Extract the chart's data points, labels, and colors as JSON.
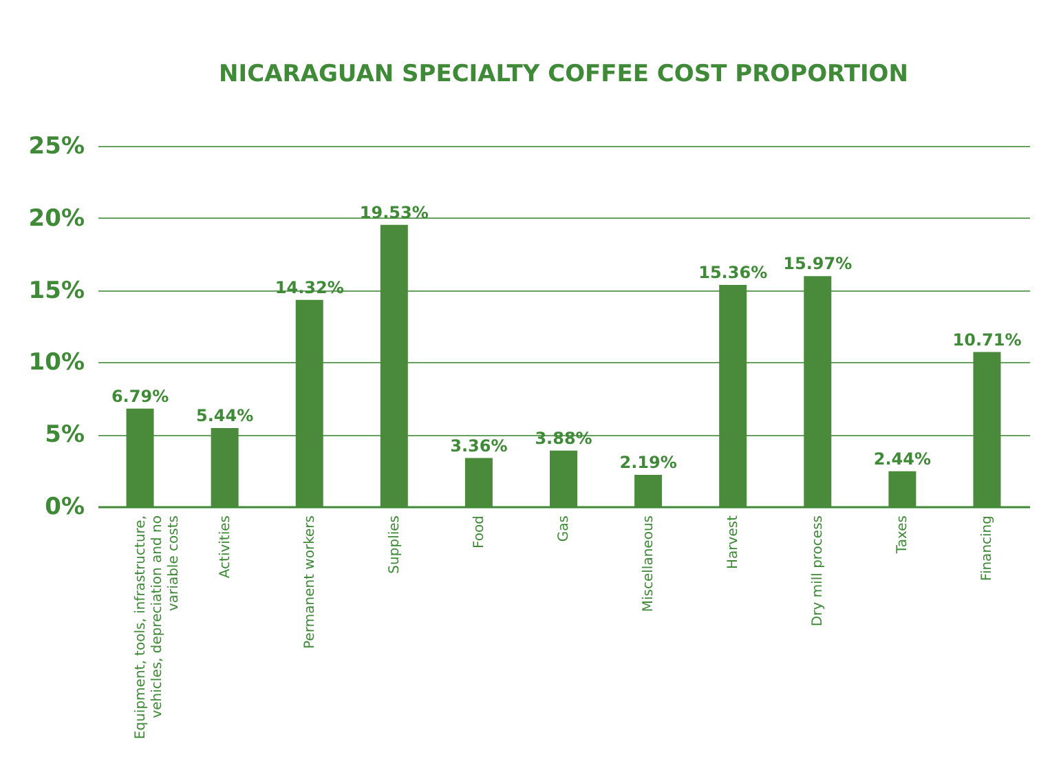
{
  "chart_data": {
    "type": "bar",
    "title": "NICARAGUAN SPECIALTY COFFEE COST PROPORTION",
    "categories": [
      "Equipment, tools, infrastructure, vehicles, depreciation and no variable costs",
      "Activities",
      "Permanent workers",
      "Supplies",
      "Food",
      "Gas",
      "Miscellaneous",
      "Harvest",
      "Dry mill process",
      "Taxes",
      "Financing"
    ],
    "values": [
      6.79,
      5.44,
      14.32,
      19.53,
      3.36,
      3.88,
      2.19,
      15.36,
      15.97,
      2.44,
      10.71
    ],
    "value_labels": [
      "6.79%",
      "5.44%",
      "14.32%",
      "19.53%",
      "3.36%",
      "3.88%",
      "2.19%",
      "15.36%",
      "15.97%",
      "2.44%",
      "10.71%"
    ],
    "color": "#4a8b3b",
    "ylim": [
      0,
      25
    ],
    "yticks": [
      {
        "value": 0,
        "label": "0%"
      },
      {
        "value": 5,
        "label": "5%"
      },
      {
        "value": 10,
        "label": "10%"
      },
      {
        "value": 15,
        "label": "15%"
      },
      {
        "value": 20,
        "label": "20%"
      },
      {
        "value": 25,
        "label": "25%"
      }
    ],
    "grid": "y"
  }
}
